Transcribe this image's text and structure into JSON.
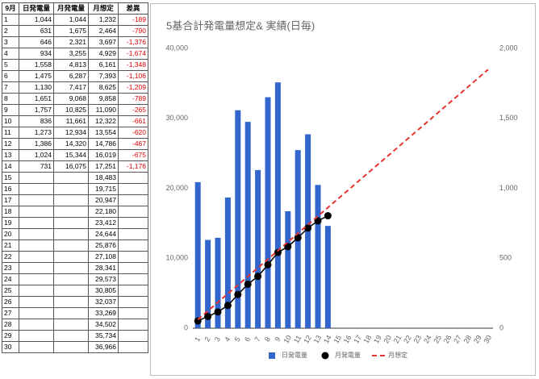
{
  "table": {
    "header": [
      "9月",
      "日発電量",
      "月発電量",
      "月想定",
      "差異"
    ],
    "rows": [
      [
        "1",
        "1,044",
        "1,044",
        "1,232",
        "-189"
      ],
      [
        "2",
        "631",
        "1,675",
        "2,464",
        "-790"
      ],
      [
        "3",
        "646",
        "2,321",
        "3,697",
        "-1,376"
      ],
      [
        "4",
        "934",
        "3,255",
        "4,929",
        "-1,674"
      ],
      [
        "5",
        "1,558",
        "4,813",
        "6,161",
        "-1,348"
      ],
      [
        "6",
        "1,475",
        "6,287",
        "7,393",
        "-1,106"
      ],
      [
        "7",
        "1,130",
        "7,417",
        "8,625",
        "-1,209"
      ],
      [
        "8",
        "1,651",
        "9,068",
        "9,858",
        "-789"
      ],
      [
        "9",
        "1,757",
        "10,825",
        "11,090",
        "-265"
      ],
      [
        "10",
        "836",
        "11,661",
        "12,322",
        "-661"
      ],
      [
        "11",
        "1,273",
        "12,934",
        "13,554",
        "-620"
      ],
      [
        "12",
        "1,386",
        "14,320",
        "14,786",
        "-467"
      ],
      [
        "13",
        "1,024",
        "15,344",
        "16,019",
        "-675"
      ],
      [
        "14",
        "731",
        "16,075",
        "17,251",
        "-1,176"
      ],
      [
        "15",
        null,
        null,
        "18,483",
        null
      ],
      [
        "16",
        null,
        null,
        "19,715",
        null
      ],
      [
        "17",
        null,
        null,
        "20,947",
        null
      ],
      [
        "18",
        null,
        null,
        "22,180",
        null
      ],
      [
        "19",
        null,
        null,
        "23,412",
        null
      ],
      [
        "20",
        null,
        null,
        "24,644",
        null
      ],
      [
        "21",
        null,
        null,
        "25,876",
        null
      ],
      [
        "22",
        null,
        null,
        "27,108",
        null
      ],
      [
        "23",
        null,
        null,
        "28,341",
        null
      ],
      [
        "24",
        null,
        null,
        "29,573",
        null
      ],
      [
        "25",
        null,
        null,
        "30,805",
        null
      ],
      [
        "26",
        null,
        null,
        "32,037",
        null
      ],
      [
        "27",
        null,
        null,
        "33,269",
        null
      ],
      [
        "28",
        null,
        null,
        "34,502",
        null
      ],
      [
        "29",
        null,
        null,
        "35,734",
        null
      ],
      [
        "30",
        null,
        null,
        "36,966",
        null
      ]
    ]
  },
  "chart_data": {
    "type": "combo",
    "title": "5基合計発電量想定& 実績(日毎)",
    "categories": [
      1,
      2,
      3,
      4,
      5,
      6,
      7,
      8,
      9,
      10,
      11,
      12,
      13,
      14,
      15,
      16,
      17,
      18,
      19,
      20,
      21,
      22,
      23,
      24,
      25,
      26,
      27,
      28,
      29,
      30
    ],
    "ylim": [
      0,
      40000
    ],
    "yticks": [
      0,
      {
        "value": 10000,
        "label": "10,000"
      },
      {
        "value": 20000,
        "label": "20,000"
      },
      {
        "value": 30000,
        "label": "30,000"
      },
      {
        "value": 40000,
        "label": "40,000"
      }
    ],
    "y2lim": [
      0,
      2000
    ],
    "y2ticks": [
      0,
      500,
      {
        "value": 1000,
        "label": "1,000"
      },
      {
        "value": 1500,
        "label": "1,500"
      },
      {
        "value": 2000,
        "label": "2,000"
      }
    ],
    "legend": "bottom",
    "series": [
      {
        "name": "日発電量",
        "type": "bar",
        "axis": "y2",
        "color": "#3366cc",
        "values": [
          1044,
          631,
          646,
          934,
          1558,
          1475,
          1130,
          1651,
          1757,
          836,
          1273,
          1386,
          1024,
          731,
          null,
          null,
          null,
          null,
          null,
          null,
          null,
          null,
          null,
          null,
          null,
          null,
          null,
          null,
          null,
          null
        ]
      },
      {
        "name": "月発電量",
        "type": "line",
        "markers": true,
        "color": "#000000",
        "values": [
          1044,
          1675,
          2321,
          3255,
          4813,
          6287,
          7417,
          9068,
          10825,
          11661,
          12934,
          14320,
          15344,
          16075,
          null,
          null,
          null,
          null,
          null,
          null,
          null,
          null,
          null,
          null,
          null,
          null,
          null,
          null,
          null,
          null
        ]
      },
      {
        "name": "月想定",
        "type": "line",
        "dashed": true,
        "color": "#e8342c",
        "values": [
          1232,
          2464,
          3697,
          4929,
          6161,
          7393,
          8625,
          9858,
          11090,
          12322,
          13554,
          14786,
          16019,
          17251,
          18483,
          19715,
          20947,
          22180,
          23412,
          24644,
          25876,
          27108,
          28341,
          29573,
          30805,
          32037,
          33269,
          34502,
          35734,
          36966
        ]
      }
    ]
  }
}
